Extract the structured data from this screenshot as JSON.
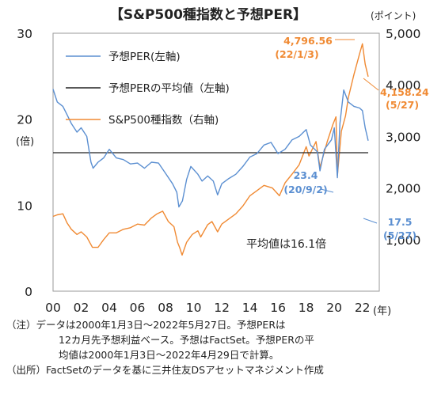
{
  "chart_data": {
    "type": "line",
    "title": "【S&P500種指数と予想PER】",
    "left_axis": {
      "unit_label": "(倍)",
      "ylim": [
        0,
        30
      ],
      "ticks": [
        "0",
        "10",
        "20",
        "30"
      ]
    },
    "right_axis": {
      "unit_label": "(ポイント)",
      "ylim": [
        0,
        5000
      ],
      "ticks": [
        "1,000",
        "2,000",
        "3,000",
        "4,000",
        "5,000"
      ]
    },
    "x_axis": {
      "unit_label": "(年)",
      "xlim": [
        2000,
        2023.2
      ],
      "ticks": [
        "00",
        "02",
        "04",
        "06",
        "08",
        "10",
        "12",
        "14",
        "16",
        "18",
        "20",
        "22"
      ]
    },
    "legend": {
      "placement": "top-left",
      "items": [
        {
          "label": "予想PER(左軸)",
          "color": "#5b8fd1"
        },
        {
          "label": "予想PERの平均値（左軸)",
          "color": "#222222"
        },
        {
          "label": "S&P500種指数（右軸)",
          "color": "#f08a33"
        }
      ]
    },
    "series": [
      {
        "name": "予想PER(左軸)",
        "axis": "left",
        "color": "#5b8fd1",
        "x": [
          2000.0,
          2000.3,
          2000.7,
          2001.0,
          2001.3,
          2001.7,
          2002.0,
          2002.4,
          2002.7,
          2002.85,
          2003.2,
          2003.6,
          2004.0,
          2004.5,
          2005.0,
          2005.5,
          2006.0,
          2006.5,
          2007.0,
          2007.5,
          2008.0,
          2008.5,
          2008.8,
          2008.95,
          2009.2,
          2009.5,
          2009.8,
          2010.3,
          2010.6,
          2011.0,
          2011.4,
          2011.7,
          2012.0,
          2012.5,
          2013.0,
          2013.5,
          2014.0,
          2014.5,
          2015.0,
          2015.5,
          2016.0,
          2016.5,
          2017.0,
          2017.5,
          2018.0,
          2018.3,
          2018.8,
          2018.98,
          2019.3,
          2019.8,
          2020.0,
          2020.22,
          2020.4,
          2020.67,
          2021.0,
          2021.4,
          2021.8,
          2022.0,
          2022.2,
          2022.41
        ],
        "y": [
          23.5,
          22.0,
          21.5,
          20.5,
          19.5,
          18.5,
          19.0,
          18.0,
          15.0,
          14.3,
          15.0,
          15.5,
          16.5,
          15.5,
          15.3,
          14.8,
          14.9,
          14.3,
          15.0,
          14.9,
          13.7,
          12.5,
          11.5,
          9.8,
          10.5,
          13.0,
          14.5,
          13.6,
          12.8,
          13.4,
          12.8,
          11.2,
          12.5,
          13.1,
          13.6,
          14.5,
          15.6,
          16.0,
          17.0,
          17.3,
          16.0,
          16.5,
          17.6,
          18.0,
          18.8,
          17.0,
          16.2,
          14.0,
          16.5,
          17.6,
          19.0,
          13.2,
          19.5,
          23.4,
          22.0,
          21.5,
          21.3,
          21.0,
          19.0,
          17.5
        ]
      },
      {
        "name": "予想PERの平均値（左軸)",
        "axis": "left",
        "color": "#222222",
        "x": [
          2000.0,
          2022.41
        ],
        "y": [
          16.1,
          16.1
        ]
      },
      {
        "name": "S&P500種指数（右軸)",
        "axis": "right",
        "color": "#f08a33",
        "x": [
          2000.0,
          2000.3,
          2000.7,
          2001.0,
          2001.3,
          2001.7,
          2002.0,
          2002.4,
          2002.8,
          2003.2,
          2003.6,
          2004.0,
          2004.5,
          2005.0,
          2005.5,
          2006.0,
          2006.5,
          2007.0,
          2007.4,
          2007.8,
          2008.2,
          2008.6,
          2008.85,
          2009.0,
          2009.18,
          2009.5,
          2009.9,
          2010.3,
          2010.5,
          2011.0,
          2011.3,
          2011.7,
          2012.0,
          2012.5,
          2013.0,
          2013.5,
          2014.0,
          2014.5,
          2015.0,
          2015.6,
          2016.1,
          2016.5,
          2017.0,
          2017.5,
          2018.0,
          2018.2,
          2018.7,
          2018.98,
          2019.5,
          2019.9,
          2020.12,
          2020.22,
          2020.5,
          2020.8,
          2021.0,
          2021.4,
          2021.8,
          2022.0,
          2022.2,
          2022.41
        ],
        "y": [
          1450,
          1480,
          1500,
          1320,
          1200,
          1100,
          1150,
          1050,
          850,
          850,
          1000,
          1130,
          1130,
          1200,
          1230,
          1300,
          1280,
          1420,
          1500,
          1550,
          1350,
          1250,
          950,
          850,
          700,
          950,
          1100,
          1170,
          1050,
          1290,
          1350,
          1150,
          1300,
          1400,
          1500,
          1650,
          1850,
          1950,
          2050,
          2000,
          1850,
          2100,
          2270,
          2450,
          2800,
          2620,
          2900,
          2400,
          2900,
          3230,
          3380,
          2240,
          3100,
          3400,
          3750,
          4200,
          4600,
          4796.56,
          4400,
          4158.24
        ]
      }
    ],
    "reference_line": {
      "label": "平均値は16.1倍",
      "value": 16.1
    },
    "annotations": [
      {
        "series": "S&P500種指数（右軸)",
        "value": "4,796.56",
        "date": "(22/1/3)",
        "color": "#f08a33"
      },
      {
        "series": "S&P500種指数（右軸)",
        "value": "4,158.24",
        "date": "(5/27)",
        "color": "#f08a33"
      },
      {
        "series": "予想PER(左軸)",
        "value": "23.4",
        "date": "(20/9/2)",
        "color": "#5b8fd1"
      },
      {
        "series": "予想PER(左軸)",
        "value": "17.5",
        "date": "(5/27)",
        "color": "#5b8fd1"
      }
    ],
    "grid": false
  },
  "notes": {
    "line1": "（注）データは2000年1月3日～2022年5月27日。予想PERは",
    "line2": "12カ月先予想利益ベース。予想はFactSet。予想PERの平",
    "line3": "均値は2000年1月3日～2022年4月29日で計算。",
    "line4": "（出所）FactSetのデータを基に三井住友DSアセットマネジメント作成"
  }
}
